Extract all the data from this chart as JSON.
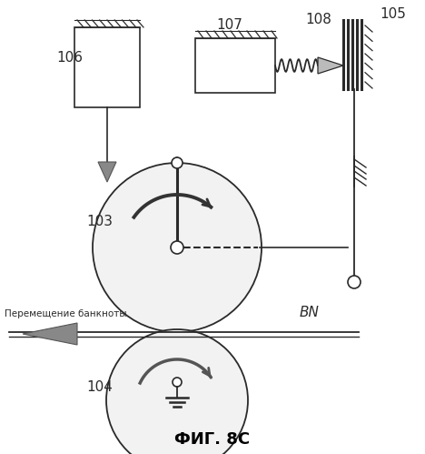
{
  "title": "ФИГ. 8С",
  "label_106": "106",
  "label_107": "107",
  "label_108": "108",
  "label_105": "105",
  "label_103": "103",
  "label_104": "104",
  "label_BN": "BN",
  "label_banknote": "Перемещение банкноты",
  "bg_color": "#ffffff",
  "line_color": "#2a2a2a",
  "circle_fill": "#f2f2f2",
  "arrow_dark": "#444444",
  "arrow_gray": "#888888"
}
